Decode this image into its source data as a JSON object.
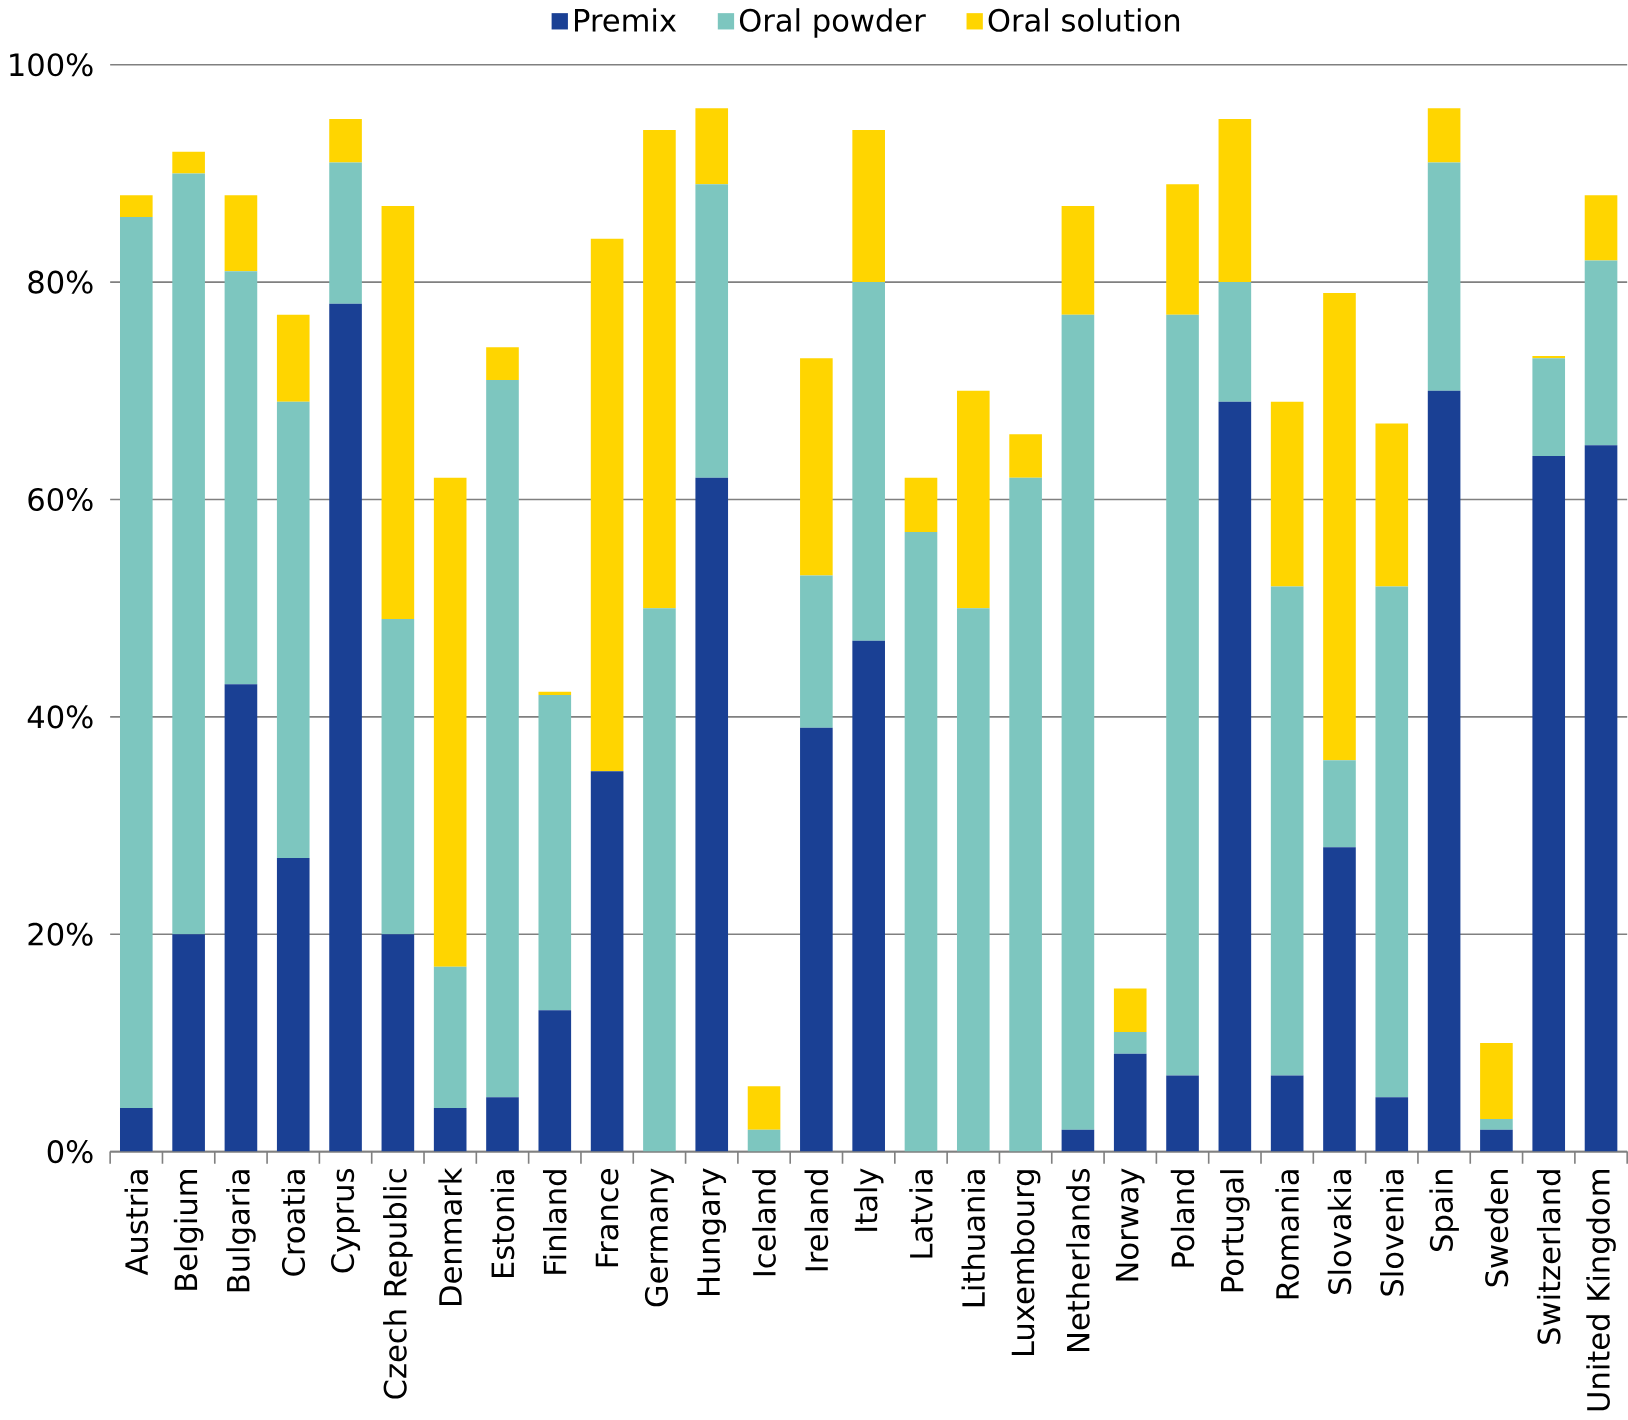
{
  "chart_data": {
    "type": "bar",
    "stacked": true,
    "categories": [
      "Austria",
      "Belgium",
      "Bulgaria",
      "Croatia",
      "Cyprus",
      "Czech Republic",
      "Denmark",
      "Estonia",
      "Finland",
      "France",
      "Germany",
      "Hungary",
      "Iceland",
      "Ireland",
      "Italy",
      "Latvia",
      "Lithuania",
      "Luxembourg",
      "Netherlands",
      "Norway",
      "Poland",
      "Portugal",
      "Romania",
      "Slovakia",
      "Slovenia",
      "Spain",
      "Sweden",
      "Switzerland",
      "United Kingdom"
    ],
    "series": [
      {
        "name": "Premix",
        "color": "#1a4094",
        "values": [
          4,
          20,
          43,
          27,
          78,
          20,
          4,
          5,
          13,
          35,
          0,
          62,
          0,
          39,
          47,
          0,
          0,
          0,
          2,
          9,
          7,
          69,
          7,
          28,
          5,
          70,
          2,
          64,
          65
        ]
      },
      {
        "name": "Oral powder",
        "color": "#7dc6bf",
        "values": [
          82,
          70,
          38,
          42,
          13,
          29,
          13,
          66,
          29,
          0,
          50,
          27,
          2,
          14,
          33,
          57,
          50,
          62,
          75,
          2,
          70,
          11,
          45,
          8,
          47,
          21,
          1,
          9,
          17
        ]
      },
      {
        "name": "Oral solution",
        "color": "#ffd500",
        "values": [
          2,
          2,
          7,
          8,
          4,
          38,
          45,
          3,
          0.3,
          49,
          44,
          7,
          4,
          20,
          14,
          5,
          20,
          4,
          10,
          4,
          12,
          15,
          17,
          43,
          15,
          5,
          7,
          0.2,
          6
        ]
      }
    ],
    "ylim": [
      0,
      100
    ],
    "yticks": [
      {
        "value": 0,
        "label": "0%"
      },
      {
        "value": 20,
        "label": "20%"
      },
      {
        "value": 40,
        "label": "40%"
      },
      {
        "value": 60,
        "label": "60%"
      },
      {
        "value": 80,
        "label": "80%"
      },
      {
        "value": 100,
        "label": "100%"
      }
    ],
    "grid": "y",
    "legend": "top"
  }
}
